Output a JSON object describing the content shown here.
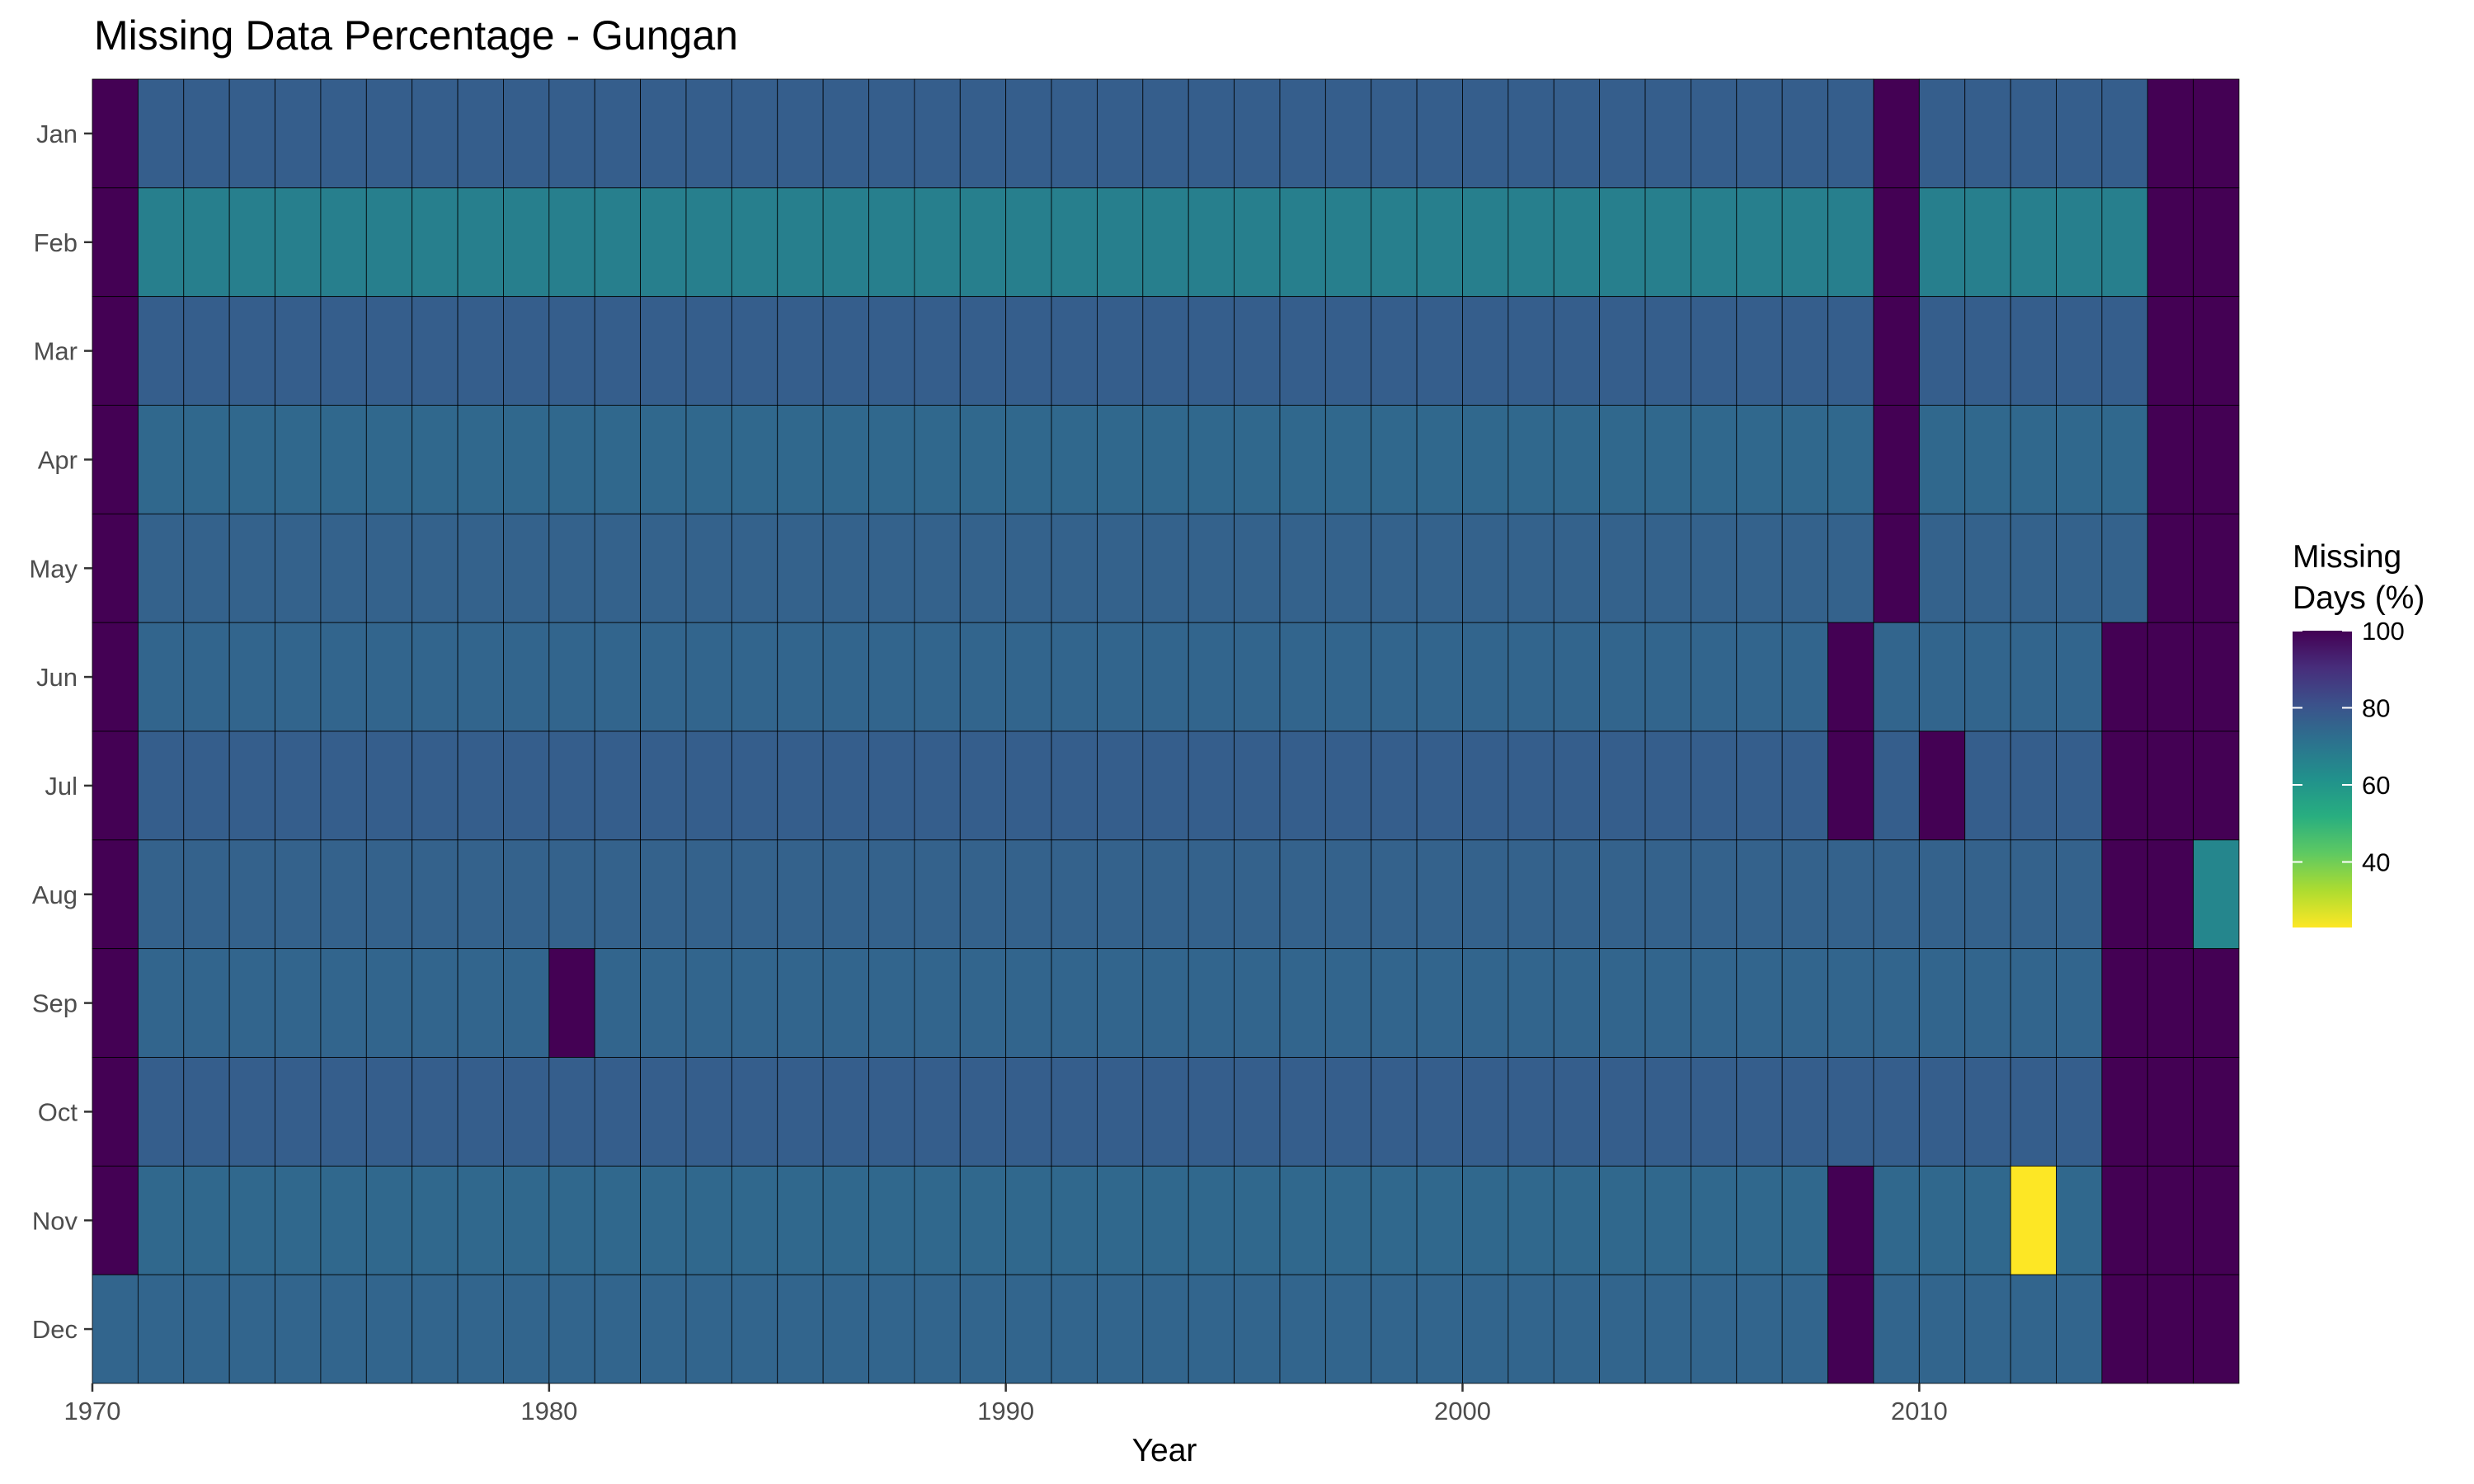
{
  "chart_data": {
    "type": "heatmap",
    "title": "Missing Data Percentage - Gungan",
    "xlabel": "Year",
    "ylabel": "",
    "x_years": [
      1970,
      1971,
      1972,
      1973,
      1974,
      1975,
      1976,
      1977,
      1978,
      1979,
      1980,
      1981,
      1982,
      1983,
      1984,
      1985,
      1986,
      1987,
      1988,
      1989,
      1990,
      1991,
      1992,
      1993,
      1994,
      1995,
      1996,
      1997,
      1998,
      1999,
      2000,
      2001,
      2002,
      2003,
      2004,
      2005,
      2006,
      2007,
      2008,
      2009,
      2010,
      2011,
      2012,
      2013,
      2014,
      2015,
      2016
    ],
    "x_ticks": [
      "1970",
      "1980",
      "1990",
      "2000",
      "2010"
    ],
    "months": [
      "Jan",
      "Feb",
      "Mar",
      "Apr",
      "May",
      "Jun",
      "Jul",
      "Aug",
      "Sep",
      "Oct",
      "Nov",
      "Dec"
    ],
    "baseline_by_month": [
      77,
      67,
      77,
      74,
      76,
      75,
      77,
      76,
      75,
      77,
      74,
      75
    ],
    "overrides": [
      {
        "year": 1970,
        "month": "Jan",
        "value": 100
      },
      {
        "year": 1970,
        "month": "Feb",
        "value": 100
      },
      {
        "year": 1970,
        "month": "Mar",
        "value": 100
      },
      {
        "year": 1970,
        "month": "Apr",
        "value": 100
      },
      {
        "year": 1970,
        "month": "May",
        "value": 100
      },
      {
        "year": 1970,
        "month": "Jun",
        "value": 100
      },
      {
        "year": 1970,
        "month": "Jul",
        "value": 100
      },
      {
        "year": 1970,
        "month": "Aug",
        "value": 100
      },
      {
        "year": 1970,
        "month": "Sep",
        "value": 100
      },
      {
        "year": 1970,
        "month": "Oct",
        "value": 100
      },
      {
        "year": 1970,
        "month": "Nov",
        "value": 100
      },
      {
        "year": 1980,
        "month": "Sep",
        "value": 100
      },
      {
        "year": 2008,
        "month": "Jun",
        "value": 100
      },
      {
        "year": 2008,
        "month": "Jul",
        "value": 100
      },
      {
        "year": 2008,
        "month": "Nov",
        "value": 100
      },
      {
        "year": 2008,
        "month": "Dec",
        "value": 100
      },
      {
        "year": 2009,
        "month": "Jan",
        "value": 100
      },
      {
        "year": 2009,
        "month": "Feb",
        "value": 100
      },
      {
        "year": 2009,
        "month": "Mar",
        "value": 100
      },
      {
        "year": 2009,
        "month": "Apr",
        "value": 100
      },
      {
        "year": 2009,
        "month": "May",
        "value": 100
      },
      {
        "year": 2010,
        "month": "Jul",
        "value": 100
      },
      {
        "year": 2012,
        "month": "Nov",
        "value": 23
      },
      {
        "year": 2014,
        "month": "Jun",
        "value": 100
      },
      {
        "year": 2014,
        "month": "Jul",
        "value": 100
      },
      {
        "year": 2014,
        "month": "Aug",
        "value": 100
      },
      {
        "year": 2014,
        "month": "Sep",
        "value": 100
      },
      {
        "year": 2014,
        "month": "Oct",
        "value": 100
      },
      {
        "year": 2014,
        "month": "Nov",
        "value": 100
      },
      {
        "year": 2014,
        "month": "Dec",
        "value": 100
      },
      {
        "year": 2015,
        "month": "Jan",
        "value": 100
      },
      {
        "year": 2015,
        "month": "Feb",
        "value": 100
      },
      {
        "year": 2015,
        "month": "Mar",
        "value": 100
      },
      {
        "year": 2015,
        "month": "Apr",
        "value": 100
      },
      {
        "year": 2015,
        "month": "May",
        "value": 100
      },
      {
        "year": 2015,
        "month": "Jun",
        "value": 100
      },
      {
        "year": 2015,
        "month": "Jul",
        "value": 100
      },
      {
        "year": 2015,
        "month": "Aug",
        "value": 100
      },
      {
        "year": 2015,
        "month": "Sep",
        "value": 100
      },
      {
        "year": 2015,
        "month": "Oct",
        "value": 100
      },
      {
        "year": 2015,
        "month": "Nov",
        "value": 100
      },
      {
        "year": 2015,
        "month": "Dec",
        "value": 100
      },
      {
        "year": 2016,
        "month": "Jan",
        "value": 100
      },
      {
        "year": 2016,
        "month": "Feb",
        "value": 100
      },
      {
        "year": 2016,
        "month": "Mar",
        "value": 100
      },
      {
        "year": 2016,
        "month": "Apr",
        "value": 100
      },
      {
        "year": 2016,
        "month": "May",
        "value": 100
      },
      {
        "year": 2016,
        "month": "Jun",
        "value": 100
      },
      {
        "year": 2016,
        "month": "Jul",
        "value": 100
      },
      {
        "year": 2016,
        "month": "Aug",
        "value": 65
      },
      {
        "year": 2016,
        "month": "Sep",
        "value": 100
      },
      {
        "year": 2016,
        "month": "Oct",
        "value": 100
      },
      {
        "year": 2016,
        "month": "Nov",
        "value": 100
      },
      {
        "year": 2016,
        "month": "Dec",
        "value": 100
      }
    ],
    "legend": {
      "title_line1": "Missing",
      "title_line2": "Days (%)",
      "ticks": [
        "100",
        "80",
        "60",
        "40"
      ],
      "range": [
        23,
        100
      ],
      "placement": "right"
    },
    "color_scale": "viridis (reversed)",
    "grid": false
  }
}
